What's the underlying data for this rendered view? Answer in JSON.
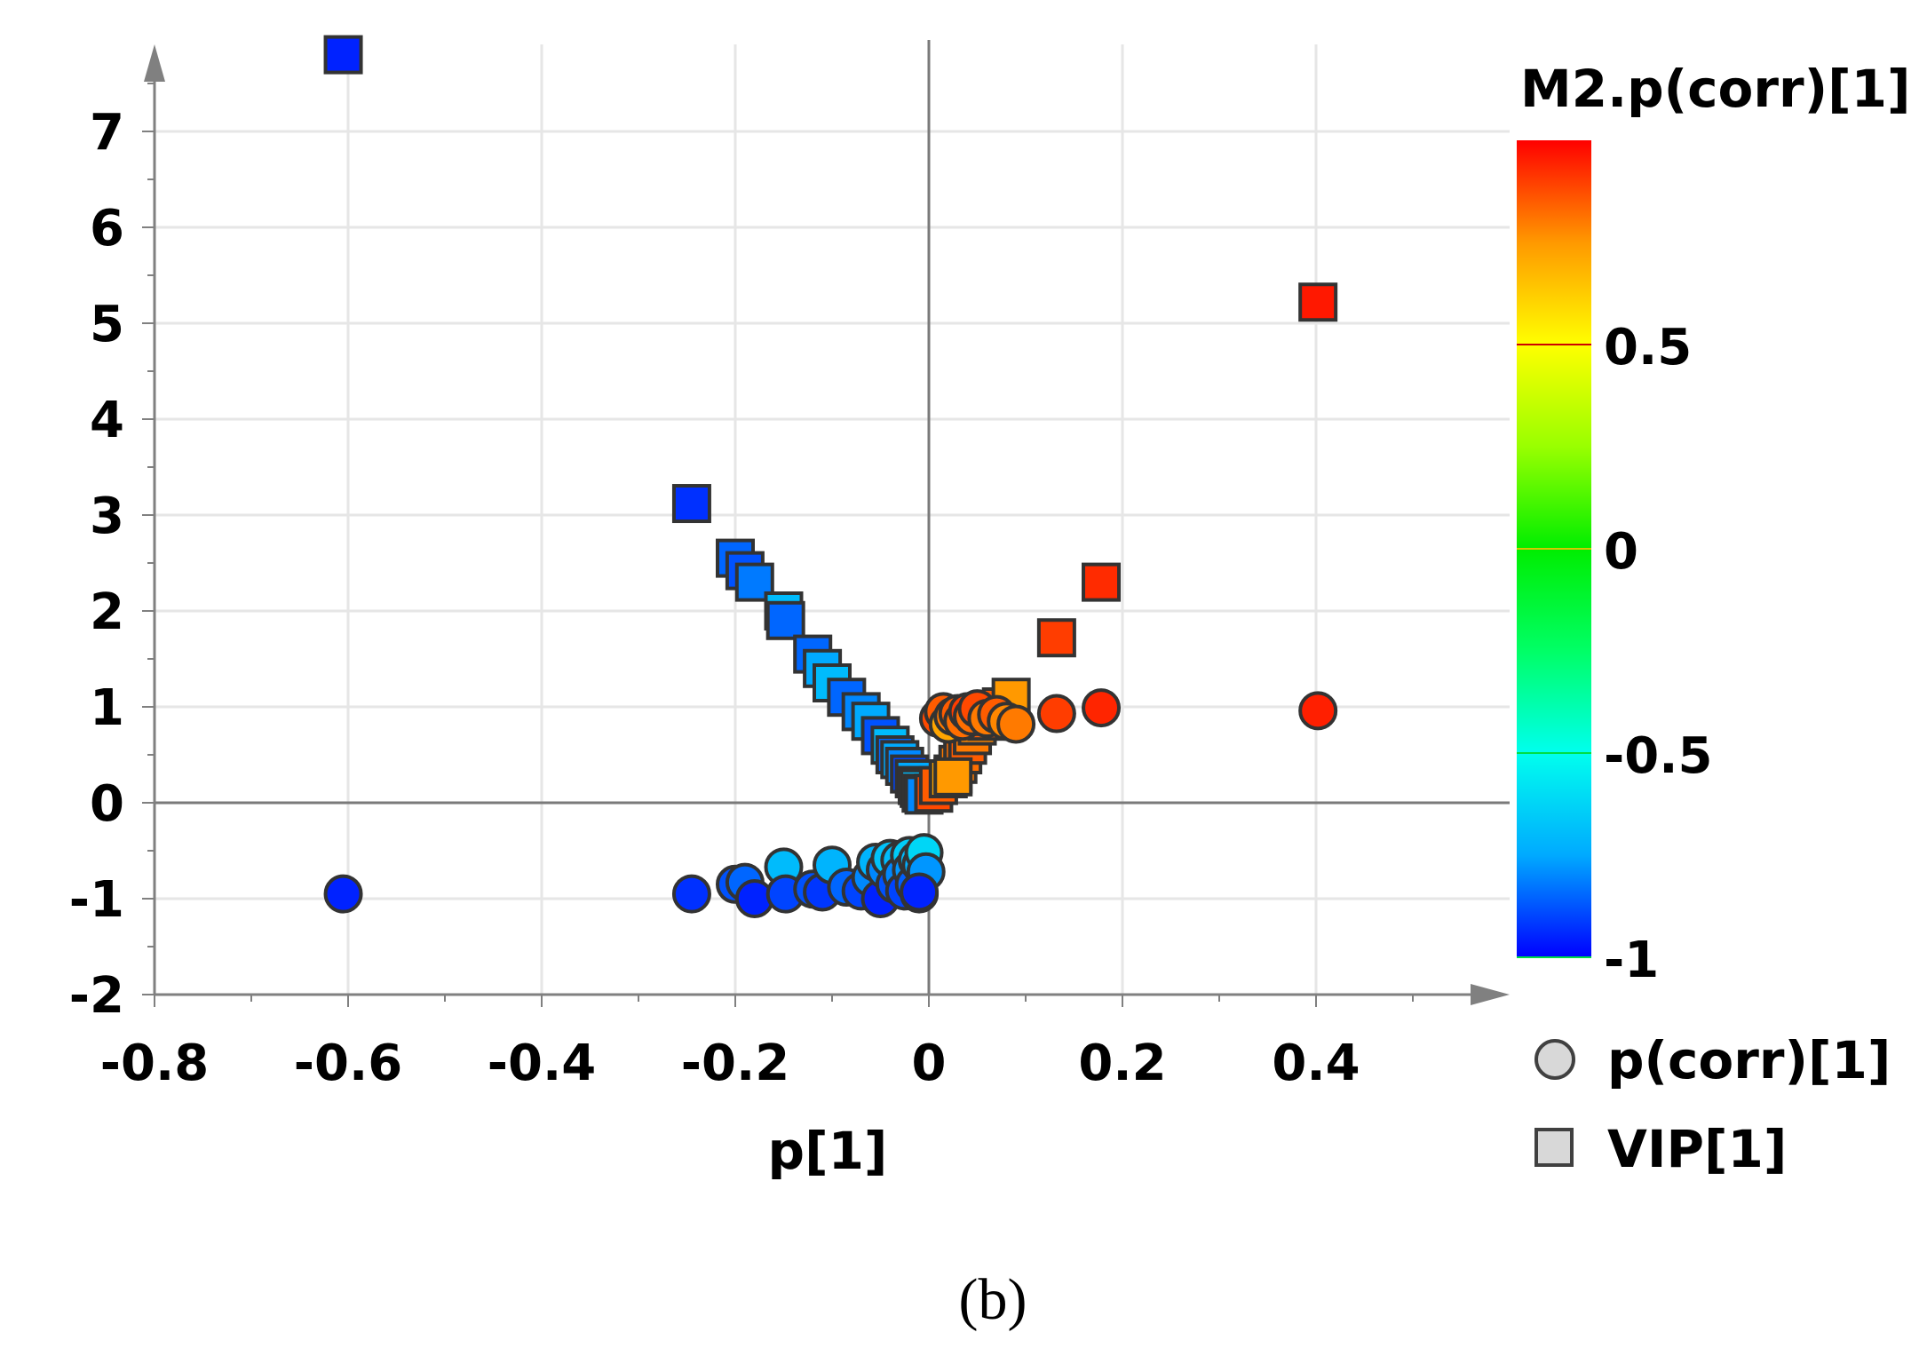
{
  "chart_data": {
    "type": "scatter",
    "xlabel": "p[1]",
    "ylabel": "",
    "xlim": [
      -0.8,
      0.58
    ],
    "ylim": [
      -2,
      8
    ],
    "x_ticks": [
      "-0.8",
      "-0.6",
      "-0.4",
      "-0.2",
      "0",
      "0.2",
      "0.4"
    ],
    "y_ticks": [
      "-2",
      "-1",
      "0",
      "1",
      "2",
      "3",
      "4",
      "5",
      "6",
      "7"
    ],
    "grid": true,
    "caption": "(b)",
    "colorbar": {
      "title": "M2.p(corr)[1]",
      "range": [
        -1,
        1
      ],
      "ticks": [
        "0.5",
        "0",
        "-0.5",
        "-1"
      ],
      "colors": [
        "#0000ff",
        "#00aaff",
        "#00ffee",
        "#00ff66",
        "#00ee00",
        "#99ff00",
        "#ffff00",
        "#ff9900",
        "#ff0000"
      ]
    },
    "legend": {
      "position": "bottom-right",
      "entries": [
        {
          "label": "p(corr)[1]",
          "marker": "circle"
        },
        {
          "label": "VIP[1]",
          "marker": "square"
        }
      ]
    },
    "series": [
      {
        "name": "VIP[1]",
        "marker": "square",
        "points": [
          {
            "x": -0.605,
            "y": 7.8,
            "c": -0.95
          },
          {
            "x": -0.245,
            "y": 3.12,
            "c": -0.93
          },
          {
            "x": -0.2,
            "y": 2.55,
            "c": -0.85
          },
          {
            "x": -0.19,
            "y": 2.42,
            "c": -0.88
          },
          {
            "x": -0.18,
            "y": 2.3,
            "c": -0.82
          },
          {
            "x": -0.15,
            "y": 2.0,
            "c": -0.7
          },
          {
            "x": -0.148,
            "y": 1.9,
            "c": -0.85
          },
          {
            "x": -0.12,
            "y": 1.55,
            "c": -0.85
          },
          {
            "x": -0.11,
            "y": 1.4,
            "c": -0.75
          },
          {
            "x": -0.1,
            "y": 1.25,
            "c": -0.7
          },
          {
            "x": -0.085,
            "y": 1.1,
            "c": -0.85
          },
          {
            "x": -0.07,
            "y": 0.95,
            "c": -0.8
          },
          {
            "x": -0.06,
            "y": 0.85,
            "c": -0.75
          },
          {
            "x": -0.05,
            "y": 0.7,
            "c": -0.88
          },
          {
            "x": -0.04,
            "y": 0.6,
            "c": -0.7
          },
          {
            "x": -0.035,
            "y": 0.5,
            "c": -0.85
          },
          {
            "x": -0.03,
            "y": 0.45,
            "c": -0.75
          },
          {
            "x": -0.025,
            "y": 0.38,
            "c": -0.8
          },
          {
            "x": -0.02,
            "y": 0.3,
            "c": -0.9
          },
          {
            "x": -0.015,
            "y": 0.25,
            "c": -0.75
          },
          {
            "x": -0.012,
            "y": 0.18,
            "c": -0.88
          },
          {
            "x": -0.01,
            "y": 0.15,
            "c": -0.7
          },
          {
            "x": -0.008,
            "y": 0.1,
            "c": -0.85
          },
          {
            "x": -0.005,
            "y": 0.08,
            "c": -0.8
          },
          {
            "x": 0.005,
            "y": 0.1,
            "c": 0.88
          },
          {
            "x": 0.01,
            "y": 0.18,
            "c": 0.85
          },
          {
            "x": 0.02,
            "y": 0.25,
            "c": 0.72
          },
          {
            "x": 0.025,
            "y": 0.3,
            "c": 0.75
          },
          {
            "x": 0.03,
            "y": 0.4,
            "c": 0.8
          },
          {
            "x": 0.035,
            "y": 0.5,
            "c": 0.82
          },
          {
            "x": 0.04,
            "y": 0.6,
            "c": 0.85
          },
          {
            "x": 0.045,
            "y": 0.7,
            "c": 0.8
          },
          {
            "x": 0.05,
            "y": 0.8,
            "c": 0.78
          },
          {
            "x": 0.06,
            "y": 0.85,
            "c": 0.85
          },
          {
            "x": 0.065,
            "y": 0.9,
            "c": 0.82
          },
          {
            "x": 0.07,
            "y": 0.95,
            "c": 0.8
          },
          {
            "x": 0.075,
            "y": 1.0,
            "c": 0.85
          },
          {
            "x": 0.085,
            "y": 1.1,
            "c": 0.75
          },
          {
            "x": 0.025,
            "y": 0.27,
            "c": 0.75
          },
          {
            "x": 0.132,
            "y": 1.72,
            "c": 0.9
          },
          {
            "x": 0.178,
            "y": 2.3,
            "c": 0.93
          },
          {
            "x": 0.402,
            "y": 5.22,
            "c": 0.96
          }
        ]
      },
      {
        "name": "p(corr)[1]",
        "marker": "circle",
        "points": [
          {
            "x": -0.605,
            "y": -0.95,
            "c": -0.95
          },
          {
            "x": -0.245,
            "y": -0.95,
            "c": -0.93
          },
          {
            "x": -0.2,
            "y": -0.85,
            "c": -0.88
          },
          {
            "x": -0.19,
            "y": -0.83,
            "c": -0.85
          },
          {
            "x": -0.18,
            "y": -1.0,
            "c": -0.95
          },
          {
            "x": -0.15,
            "y": -0.67,
            "c": -0.7
          },
          {
            "x": -0.148,
            "y": -0.95,
            "c": -0.9
          },
          {
            "x": -0.12,
            "y": -0.9,
            "c": -0.88
          },
          {
            "x": -0.11,
            "y": -0.93,
            "c": -0.92
          },
          {
            "x": -0.1,
            "y": -0.65,
            "c": -0.72
          },
          {
            "x": -0.085,
            "y": -0.88,
            "c": -0.85
          },
          {
            "x": -0.07,
            "y": -0.92,
            "c": -0.9
          },
          {
            "x": -0.06,
            "y": -0.78,
            "c": -0.8
          },
          {
            "x": -0.055,
            "y": -0.62,
            "c": -0.72
          },
          {
            "x": -0.05,
            "y": -1.0,
            "c": -0.95
          },
          {
            "x": -0.045,
            "y": -0.7,
            "c": -0.8
          },
          {
            "x": -0.04,
            "y": -0.58,
            "c": -0.68
          },
          {
            "x": -0.035,
            "y": -0.85,
            "c": -0.88
          },
          {
            "x": -0.03,
            "y": -0.6,
            "c": -0.7
          },
          {
            "x": -0.028,
            "y": -0.75,
            "c": -0.8
          },
          {
            "x": -0.025,
            "y": -0.92,
            "c": -0.9
          },
          {
            "x": -0.02,
            "y": -0.55,
            "c": -0.65
          },
          {
            "x": -0.018,
            "y": -0.7,
            "c": -0.78
          },
          {
            "x": -0.015,
            "y": -0.85,
            "c": -0.86
          },
          {
            "x": -0.012,
            "y": -0.6,
            "c": -0.7
          },
          {
            "x": -0.01,
            "y": -0.95,
            "c": -0.92
          },
          {
            "x": -0.008,
            "y": -0.65,
            "c": -0.74
          },
          {
            "x": -0.005,
            "y": -0.52,
            "c": -0.62
          },
          {
            "x": -0.003,
            "y": -0.72,
            "c": -0.78
          },
          {
            "x": -0.01,
            "y": -0.93,
            "c": -0.95
          },
          {
            "x": 0.01,
            "y": 0.88,
            "c": 0.88
          },
          {
            "x": 0.015,
            "y": 0.95,
            "c": 0.85
          },
          {
            "x": 0.02,
            "y": 0.82,
            "c": 0.72
          },
          {
            "x": 0.025,
            "y": 0.9,
            "c": 0.8
          },
          {
            "x": 0.03,
            "y": 0.93,
            "c": 0.85
          },
          {
            "x": 0.035,
            "y": 0.85,
            "c": 0.82
          },
          {
            "x": 0.04,
            "y": 0.95,
            "c": 0.9
          },
          {
            "x": 0.045,
            "y": 0.9,
            "c": 0.82
          },
          {
            "x": 0.05,
            "y": 0.98,
            "c": 0.88
          },
          {
            "x": 0.06,
            "y": 0.88,
            "c": 0.8
          },
          {
            "x": 0.07,
            "y": 0.92,
            "c": 0.85
          },
          {
            "x": 0.08,
            "y": 0.85,
            "c": 0.78
          },
          {
            "x": 0.09,
            "y": 0.82,
            "c": 0.8
          },
          {
            "x": 0.132,
            "y": 0.93,
            "c": 0.9
          },
          {
            "x": 0.178,
            "y": 0.99,
            "c": 0.94
          },
          {
            "x": 0.402,
            "y": 0.96,
            "c": 0.95
          }
        ]
      }
    ]
  }
}
